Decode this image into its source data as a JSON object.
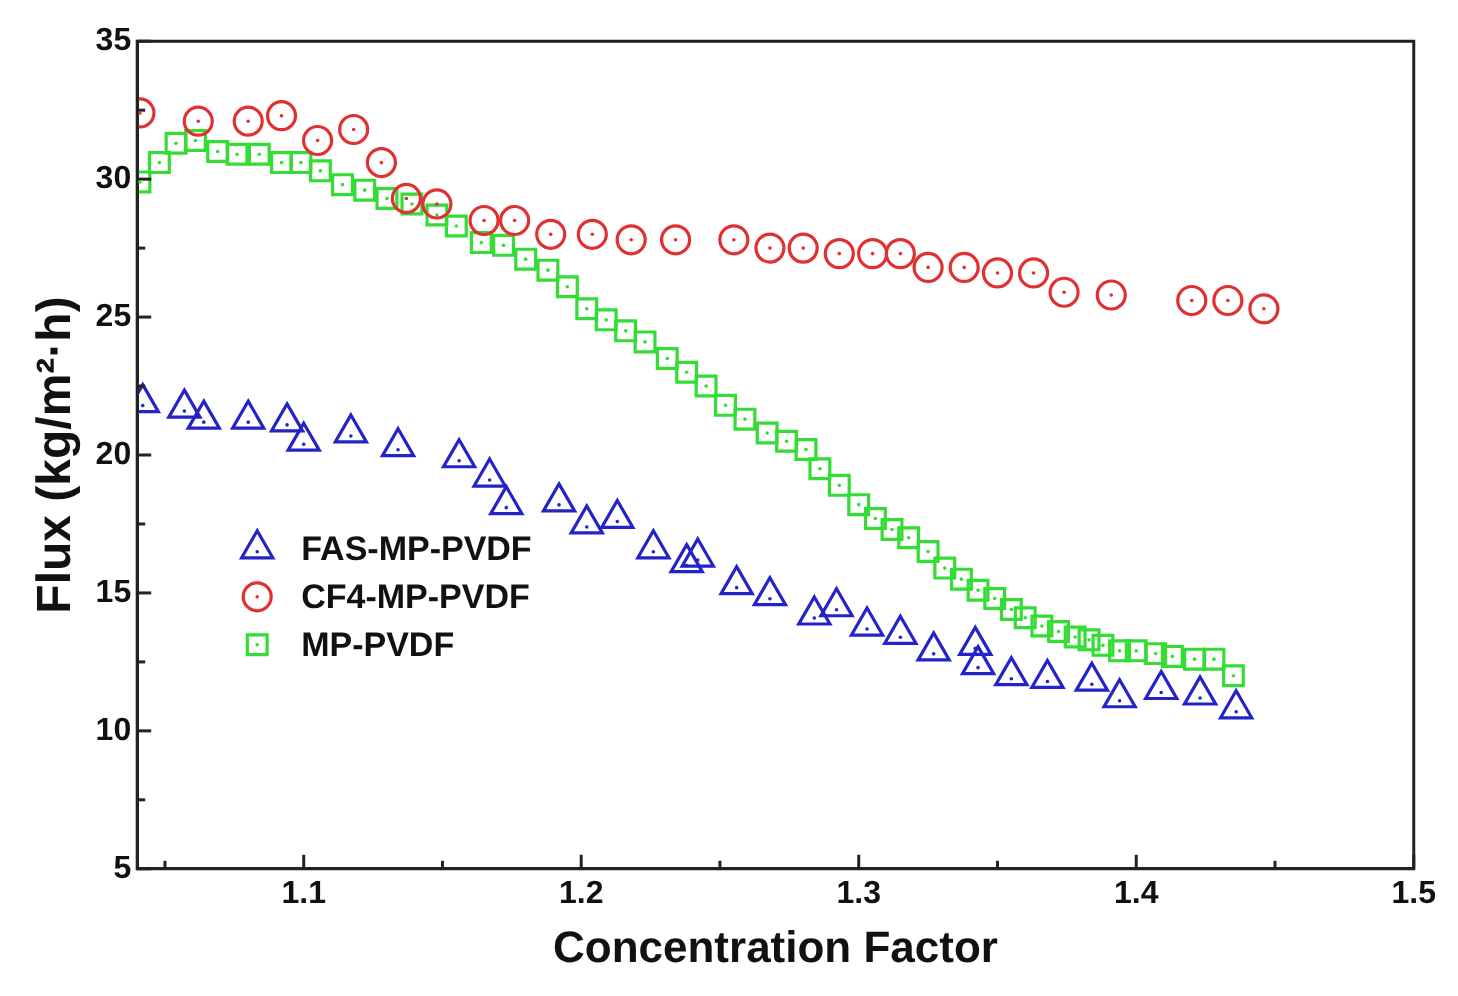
{
  "chart_data": {
    "type": "scatter",
    "xlabel": "Concentration Factor",
    "ylabel": "Flux (kg/m²·h)",
    "xlim": [
      1.04,
      1.5
    ],
    "xticks": [
      {
        "value": 1.05,
        "label": null
      },
      1.1,
      {
        "value": 1.15,
        "label": null
      },
      1.2,
      {
        "value": 1.25,
        "label": null
      },
      1.3,
      {
        "value": 1.35,
        "label": null
      },
      1.4,
      {
        "value": 1.45,
        "label": null
      },
      1.5
    ],
    "ylim": [
      5,
      35
    ],
    "yticks": [
      5,
      {
        "value": 7.5,
        "label": null
      },
      10,
      {
        "value": 12.5,
        "label": null
      },
      15,
      {
        "value": 17.5,
        "label": null
      },
      20,
      {
        "value": 22.5,
        "label": null
      },
      25,
      {
        "value": 27.5,
        "label": null
      },
      30,
      {
        "value": 32.5,
        "label": null
      },
      35
    ],
    "grid": false,
    "legend": "bottom left",
    "series": [
      {
        "name": "FAS-MP-PVDF",
        "color": "#2323c8",
        "marker": "triangle",
        "x": [
          1.042,
          1.057,
          1.064,
          1.08,
          1.094,
          1.1,
          1.117,
          1.134,
          1.156,
          1.167,
          1.173,
          1.192,
          1.202,
          1.213,
          1.226,
          1.238,
          1.242,
          1.256,
          1.268,
          1.284,
          1.292,
          1.303,
          1.315,
          1.327,
          1.342,
          1.343,
          1.355,
          1.368,
          1.384,
          1.394,
          1.409,
          1.423,
          1.436
        ],
        "values": [
          21.9,
          21.7,
          21.3,
          21.3,
          21.2,
          20.5,
          20.8,
          20.3,
          19.9,
          19.2,
          18.2,
          18.3,
          17.5,
          17.7,
          16.6,
          16.1,
          16.3,
          15.3,
          14.9,
          14.2,
          14.5,
          13.8,
          13.5,
          12.9,
          13.1,
          12.4,
          12.0,
          11.9,
          11.8,
          11.2,
          11.5,
          11.3,
          10.8
        ]
      },
      {
        "name": "CF4-MP-PVDF",
        "color": "#e03030",
        "marker": "circle",
        "x": [
          1.041,
          1.062,
          1.08,
          1.092,
          1.105,
          1.118,
          1.128,
          1.137,
          1.148,
          1.165,
          1.176,
          1.189,
          1.204,
          1.218,
          1.234,
          1.255,
          1.268,
          1.28,
          1.293,
          1.305,
          1.315,
          1.325,
          1.338,
          1.35,
          1.363,
          1.374,
          1.391,
          1.42,
          1.433,
          1.446
        ],
        "values": [
          32.4,
          32.1,
          32.1,
          32.3,
          31.4,
          31.8,
          30.6,
          29.3,
          29.1,
          28.5,
          28.5,
          28.0,
          28.0,
          27.8,
          27.8,
          27.8,
          27.5,
          27.5,
          27.3,
          27.3,
          27.3,
          26.8,
          26.8,
          26.6,
          26.6,
          25.9,
          25.8,
          25.6,
          25.6,
          25.3
        ]
      },
      {
        "name": "MP-PVDF",
        "color": "#33dd33",
        "marker": "square",
        "x": [
          1.041,
          1.048,
          1.054,
          1.061,
          1.069,
          1.076,
          1.084,
          1.092,
          1.099,
          1.106,
          1.114,
          1.122,
          1.13,
          1.139,
          1.148,
          1.155,
          1.164,
          1.172,
          1.18,
          1.188,
          1.195,
          1.202,
          1.209,
          1.216,
          1.223,
          1.231,
          1.238,
          1.245,
          1.252,
          1.259,
          1.267,
          1.274,
          1.281,
          1.286,
          1.293,
          1.3,
          1.306,
          1.312,
          1.318,
          1.325,
          1.331,
          1.337,
          1.343,
          1.349,
          1.355,
          1.36,
          1.366,
          1.372,
          1.378,
          1.383,
          1.388,
          1.394,
          1.4,
          1.407,
          1.413,
          1.421,
          1.428,
          1.435
        ],
        "values": [
          29.9,
          30.6,
          31.3,
          31.4,
          31.0,
          30.9,
          30.9,
          30.6,
          30.6,
          30.3,
          29.8,
          29.6,
          29.3,
          29.1,
          28.7,
          28.3,
          27.7,
          27.6,
          27.1,
          26.7,
          26.1,
          25.3,
          24.9,
          24.5,
          24.1,
          23.5,
          23.0,
          22.5,
          21.8,
          21.3,
          20.8,
          20.5,
          20.2,
          19.5,
          18.9,
          18.2,
          17.7,
          17.3,
          17.0,
          16.5,
          15.9,
          15.5,
          15.1,
          14.8,
          14.4,
          14.1,
          13.8,
          13.6,
          13.4,
          13.3,
          13.1,
          12.9,
          12.9,
          12.8,
          12.7,
          12.6,
          12.6,
          12.0
        ]
      }
    ]
  }
}
